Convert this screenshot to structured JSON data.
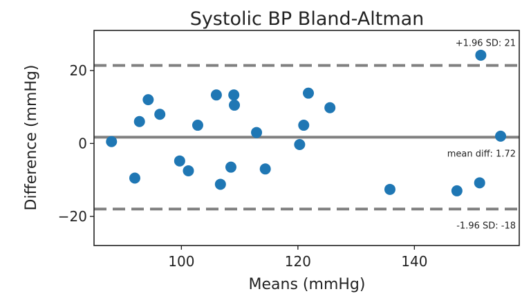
{
  "chart_data": {
    "type": "scatter",
    "title": "Systolic BP Bland-Altman",
    "xlabel": "Means (mmHg)",
    "ylabel": "Difference (mmHg)",
    "xlim": [
      85,
      158
    ],
    "ylim": [
      -28,
      31
    ],
    "x_ticks": [
      100,
      120,
      140
    ],
    "y_ticks": [
      -20,
      0,
      20
    ],
    "x_tick_labels": [
      "100",
      "120",
      "140"
    ],
    "y_tick_labels": [
      "−20",
      "0",
      "20"
    ],
    "grid": false,
    "point_color": "#1f77b4",
    "line_color": "#808080",
    "points": [
      {
        "x": 88,
        "y": 0.5
      },
      {
        "x": 92,
        "y": -9.5
      },
      {
        "x": 92.8,
        "y": 6
      },
      {
        "x": 94.3,
        "y": 12
      },
      {
        "x": 96.3,
        "y": 8
      },
      {
        "x": 99.7,
        "y": -4.8
      },
      {
        "x": 101.2,
        "y": -7.5
      },
      {
        "x": 102.8,
        "y": 5
      },
      {
        "x": 106,
        "y": 13.3
      },
      {
        "x": 106.7,
        "y": -11.2
      },
      {
        "x": 108.5,
        "y": -6.5
      },
      {
        "x": 109,
        "y": 13.3
      },
      {
        "x": 109.1,
        "y": 10.5
      },
      {
        "x": 112.9,
        "y": 3
      },
      {
        "x": 114.4,
        "y": -7
      },
      {
        "x": 120.3,
        "y": -0.3
      },
      {
        "x": 121,
        "y": 5
      },
      {
        "x": 121.8,
        "y": 13.8
      },
      {
        "x": 125.5,
        "y": 9.8
      },
      {
        "x": 135.8,
        "y": -12.6
      },
      {
        "x": 147.3,
        "y": -13
      },
      {
        "x": 151.2,
        "y": -10.8
      },
      {
        "x": 151.4,
        "y": 24.2
      },
      {
        "x": 154.8,
        "y": 2
      }
    ],
    "reference_lines": [
      {
        "value": 21.4,
        "style": "dashed",
        "label": "+1.96 SD: 21",
        "label_pos": "above-right"
      },
      {
        "value": 1.72,
        "style": "solid",
        "label": "mean diff: 1.72",
        "label_pos": "below-right"
      },
      {
        "value": -18,
        "style": "dashed",
        "label": "-1.96 SD: -18",
        "label_pos": "below-right"
      }
    ]
  }
}
